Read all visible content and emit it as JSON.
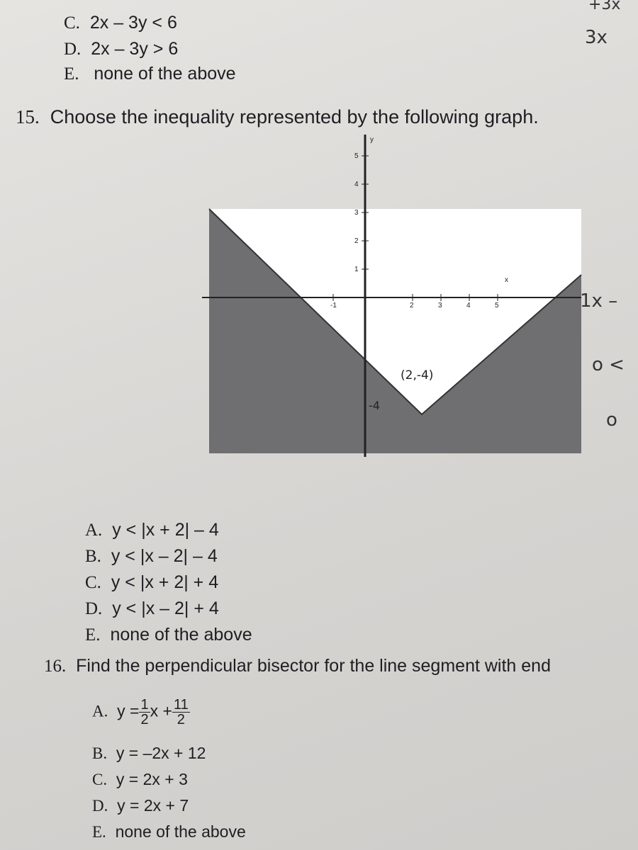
{
  "previous_question": {
    "choices": [
      {
        "letter": "C.",
        "text": "2x – 3y < 6"
      },
      {
        "letter": "D.",
        "text": "2x – 3y > 6"
      },
      {
        "letter": "E.",
        "text": "none of the above"
      }
    ]
  },
  "handwriting": [
    "+3x",
    "3x",
    "1x –",
    "o <",
    "o"
  ],
  "question_15": {
    "number": "15.",
    "text": "Choose the inequality represented by the following graph.",
    "graph": {
      "x_label": "x",
      "y_label": "y",
      "y_ticks": [
        "1",
        "2",
        "3",
        "4",
        "5"
      ],
      "x_ticks": [
        "-1",
        "2",
        "3",
        "4",
        "5"
      ],
      "vertex_note": "(2,-4)",
      "tick_note": "-4"
    },
    "choices": [
      {
        "letter": "A.",
        "text": "y < |x + 2| – 4"
      },
      {
        "letter": "B.",
        "text": "y < |x – 2| – 4"
      },
      {
        "letter": "C.",
        "text": "y < |x + 2| + 4"
      },
      {
        "letter": "D.",
        "text": "y < |x – 2| + 4"
      },
      {
        "letter": "E.",
        "text": "none of the above"
      }
    ]
  },
  "question_16": {
    "number": "16.",
    "text": "Find the perpendicular bisector for the line segment with end",
    "choice_a": {
      "letter": "A.",
      "lhs": "y =",
      "num1": "1",
      "den1": "2",
      "mid": "x +",
      "num2": "11",
      "den2": "2"
    },
    "choices": [
      {
        "letter": "B.",
        "text": "y = –2x + 12"
      },
      {
        "letter": "C.",
        "text": "y =  2x + 3"
      },
      {
        "letter": "D.",
        "text": "y =  2x + 7"
      },
      {
        "letter": "E.",
        "text": "none of the above"
      }
    ]
  }
}
